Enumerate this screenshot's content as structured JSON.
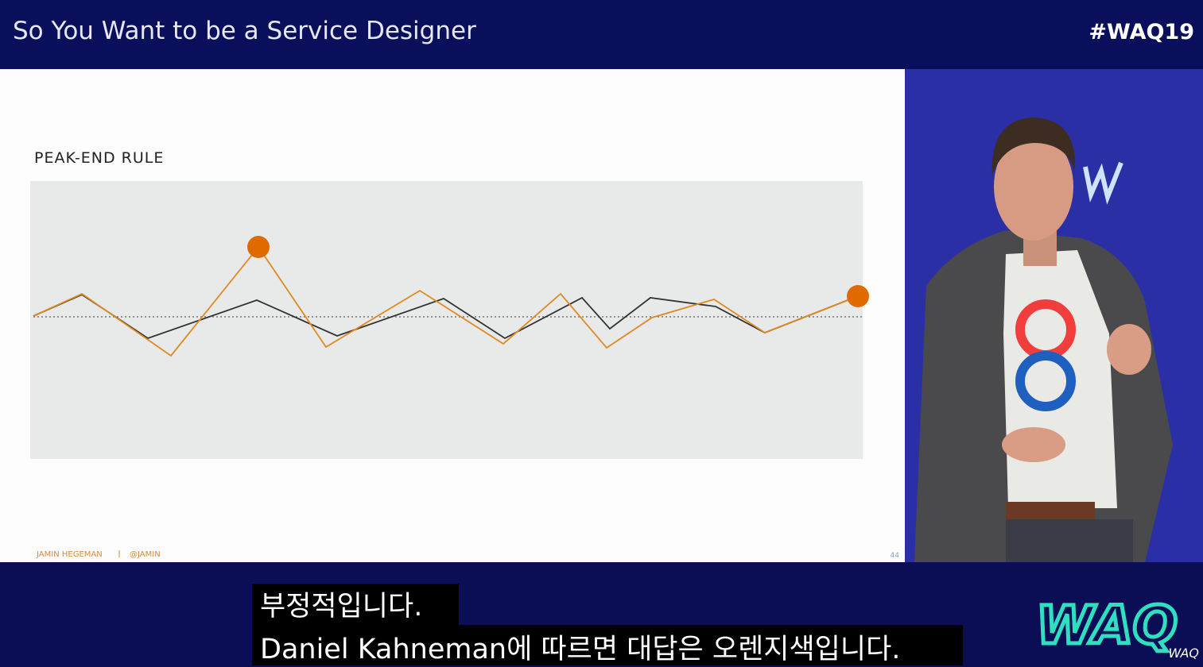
{
  "header": {
    "title": "So You Want to be a Service Designer",
    "hashtag": "#WAQ19"
  },
  "slide": {
    "title": "PEAK-END RULE",
    "footer": {
      "author": "JAMIN HEGEMAN",
      "handle": "@JAMIN"
    },
    "page": "44"
  },
  "subtitles": [
    "부정적입니다.",
    "Daniel Kahneman에 따르면 대답은 오렌지색입니다."
  ],
  "logo": {
    "main": "WAQ",
    "small": "WAQ"
  }
}
